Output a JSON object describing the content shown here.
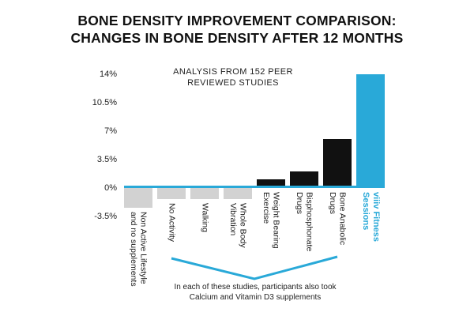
{
  "title": {
    "line1": "BONE DENSITY IMPROVEMENT COMPARISON:",
    "line2": "CHANGES IN BONE DENSITY AFTER 12 MONTHS"
  },
  "annotation": {
    "line1": "ANALYSIS FROM 152 PEER",
    "line2": "REVIEWED STUDIES"
  },
  "footnote": {
    "line1": "In each of these studies, participants also took",
    "line2": "Calcium and Vitamin D3 supplements"
  },
  "chart_data": {
    "type": "bar",
    "title": "BONE DENSITY IMPROVEMENT COMPARISON: CHANGES IN BONE DENSITY AFTER 12 MONTHS",
    "categories": [
      "Non Active Lifestyle\nand no supplements",
      "No Activity",
      "Walking",
      "Whole Body\nVibration",
      "Weight Bearing\nExercise",
      "Bisphosphonate\nDrugs",
      "Bone Anabolic\nDrugs",
      "viiiv Fitness\nSessions"
    ],
    "values": [
      -2.4,
      -1.4,
      -1.4,
      -1.4,
      1.1,
      2,
      6,
      14
    ],
    "unit": "%",
    "ylim": [
      -3.5,
      14
    ],
    "yticks": [
      {
        "value": 14,
        "label": "14%"
      },
      {
        "value": 10.5,
        "label": "10.5%"
      },
      {
        "value": 7,
        "label": "7%"
      },
      {
        "value": 3.5,
        "label": "3.5%"
      },
      {
        "value": 0,
        "label": "0%"
      },
      {
        "value": -3.5,
        "label": "-3.5%"
      }
    ],
    "bar_colors": [
      "#d2d2d2",
      "#d2d2d2",
      "#d2d2d2",
      "#d2d2d2",
      "#111111",
      "#111111",
      "#111111",
      "#29a9d8"
    ],
    "label_color": "#1a1a1a",
    "highlight_index": 7,
    "highlight_color": "#29a9d8",
    "axis_line_color": "#29a9d8",
    "bracket": {
      "from_index": 1,
      "to_index": 6
    },
    "grid": false,
    "legend": false
  }
}
